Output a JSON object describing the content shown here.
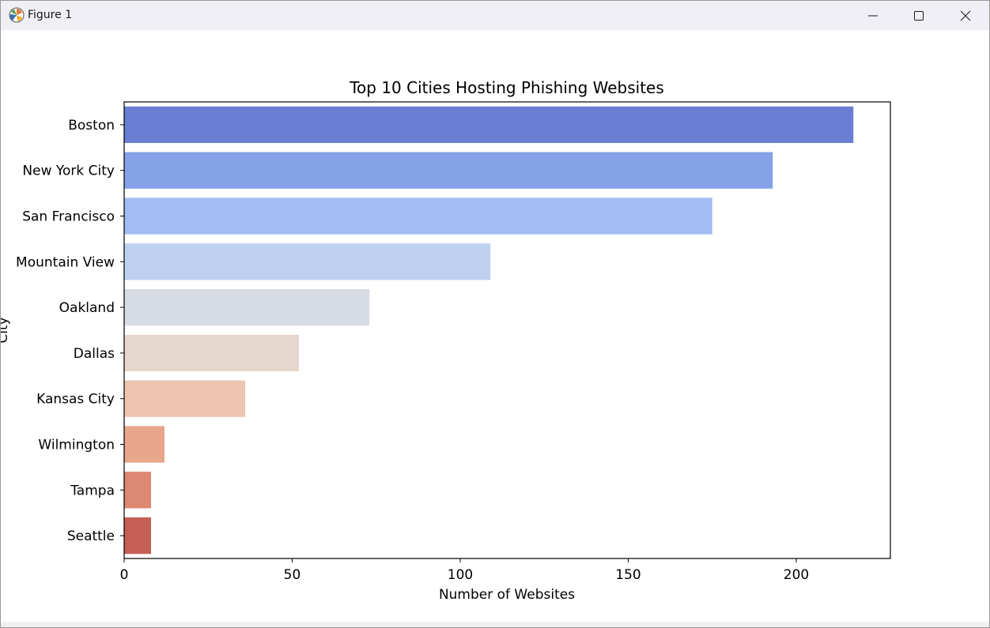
{
  "window": {
    "title": "Figure 1",
    "icons": {
      "app": "matplotlib-icon",
      "minimize": "minimize-icon",
      "maximize": "maximize-icon",
      "close": "close-icon"
    }
  },
  "chart_data": {
    "type": "bar",
    "orientation": "horizontal",
    "title": "Top 10 Cities Hosting Phishing Websites",
    "xlabel": "Number of Websites",
    "ylabel": "City",
    "categories": [
      "Boston",
      "New York City",
      "San Francisco",
      "Mountain View",
      "Oakland",
      "Dallas",
      "Kansas City",
      "Wilmington",
      "Tampa",
      "Seattle"
    ],
    "values": [
      217,
      193,
      175,
      109,
      73,
      52,
      36,
      12,
      8,
      8
    ],
    "colors": [
      "#6a7fd3",
      "#85a1e7",
      "#a3bcf2",
      "#bed0ef",
      "#d6dbe4",
      "#e5d7ce",
      "#ecc4b0",
      "#e8a68c",
      "#dd8872",
      "#c55f54"
    ],
    "xlim": [
      0,
      228
    ],
    "xticks": [
      0,
      50,
      100,
      150,
      200
    ],
    "grid": false
  }
}
